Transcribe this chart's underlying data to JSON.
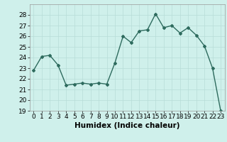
{
  "x": [
    0,
    1,
    2,
    3,
    4,
    5,
    6,
    7,
    8,
    9,
    10,
    11,
    12,
    13,
    14,
    15,
    16,
    17,
    18,
    19,
    20,
    21,
    22,
    23
  ],
  "y": [
    22.8,
    24.1,
    24.2,
    23.3,
    21.4,
    21.5,
    21.6,
    21.5,
    21.6,
    21.5,
    23.5,
    26.0,
    25.4,
    26.5,
    26.6,
    28.1,
    26.8,
    27.0,
    26.3,
    26.8,
    26.1,
    25.1,
    23.0,
    19.0
  ],
  "xlabel": "Humidex (Indice chaleur)",
  "xlim": [
    -0.5,
    23.5
  ],
  "ylim": [
    19,
    29
  ],
  "yticks": [
    19,
    20,
    21,
    22,
    23,
    24,
    25,
    26,
    27,
    28
  ],
  "xticks": [
    0,
    1,
    2,
    3,
    4,
    5,
    6,
    7,
    8,
    9,
    10,
    11,
    12,
    13,
    14,
    15,
    16,
    17,
    18,
    19,
    20,
    21,
    22,
    23
  ],
  "line_color": "#2e6b5e",
  "marker": "D",
  "marker_size": 2.0,
  "line_width": 1.0,
  "bg_color": "#cff0eb",
  "grid_color": "#b8ddd8",
  "tick_fontsize": 6.5,
  "xlabel_fontsize": 7.5
}
